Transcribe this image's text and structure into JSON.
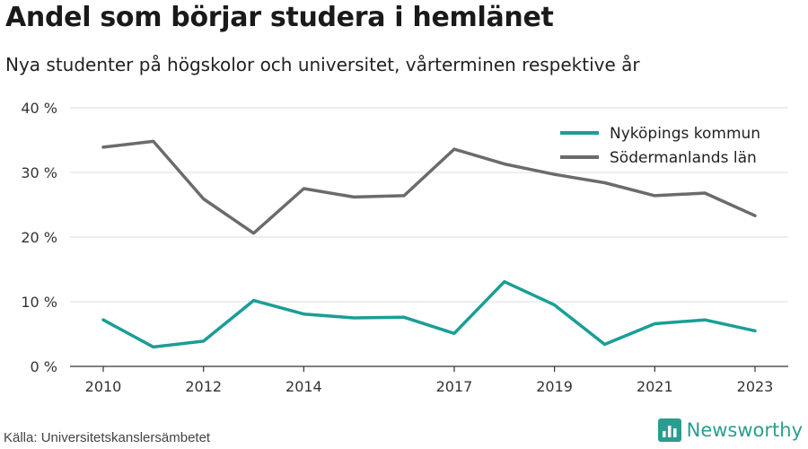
{
  "title": "Andel som börjar studera i hemlänet",
  "subtitle": "Nya studenter på högskolor och universitet, vårterminen respektive år",
  "source": "Källa: Universitetskanslersämbetet",
  "brand": {
    "name": "Newsworthy",
    "icon": "bar-chart-logo-icon",
    "color": "#2a9d8f"
  },
  "chart_data": {
    "type": "line",
    "x": [
      2010,
      2011,
      2012,
      2013,
      2014,
      2015,
      2016,
      2017,
      2018,
      2019,
      2020,
      2021,
      2022,
      2023
    ],
    "x_tick_labels": [
      "2010",
      "2012",
      "2014",
      "2017",
      "2019",
      "2021",
      "2023"
    ],
    "y_tick_labels": [
      "0 %",
      "10 %",
      "20 %",
      "30 %",
      "40 %"
    ],
    "ylim": [
      0,
      40
    ],
    "grid": true,
    "legend_position": "top-right",
    "series": [
      {
        "name": "Nyköpings kommun",
        "color": "#1a9e96",
        "values": [
          7.2,
          3.0,
          3.9,
          10.2,
          8.1,
          7.5,
          7.6,
          5.1,
          13.1,
          9.5,
          3.4,
          6.6,
          7.2,
          5.5
        ]
      },
      {
        "name": "Södermanlands län",
        "color": "#6b6b6b",
        "values": [
          33.9,
          34.8,
          25.9,
          20.6,
          27.5,
          26.2,
          26.4,
          33.6,
          31.3,
          29.7,
          28.4,
          26.4,
          26.8,
          23.3
        ]
      }
    ]
  }
}
